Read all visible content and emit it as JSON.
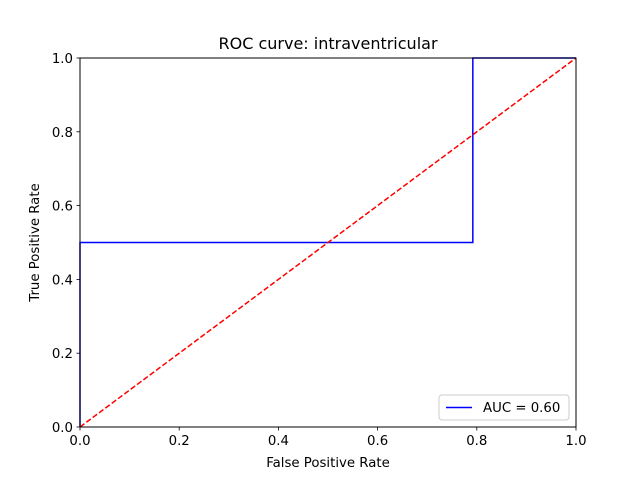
{
  "chart_data": {
    "type": "line",
    "title": "ROC curve: intraventricular",
    "xlabel": "False Positive Rate",
    "ylabel": "True Positive Rate",
    "xlim": [
      0.0,
      1.0
    ],
    "ylim": [
      0.0,
      1.0
    ],
    "x_ticks": [
      "0.0",
      "0.2",
      "0.4",
      "0.6",
      "0.8",
      "1.0"
    ],
    "y_ticks": [
      "0.0",
      "0.2",
      "0.4",
      "0.6",
      "0.8",
      "1.0"
    ],
    "x_tick_values": [
      0.0,
      0.2,
      0.4,
      0.6,
      0.8,
      1.0
    ],
    "y_tick_values": [
      0.0,
      0.2,
      0.4,
      0.6,
      0.8,
      1.0
    ],
    "grid": false,
    "legend_position": "lower-right",
    "series": [
      {
        "name": "AUC = 0.60",
        "color": "#0000ff",
        "style": "solid",
        "x": [
          0.0,
          0.0,
          0.792,
          0.792,
          1.0
        ],
        "y": [
          0.0,
          0.5,
          0.5,
          1.0,
          1.0
        ]
      },
      {
        "color": "#ff0000",
        "style": "dashed",
        "x": [
          0.0,
          1.0
        ],
        "y": [
          0.0,
          1.0
        ]
      }
    ]
  }
}
